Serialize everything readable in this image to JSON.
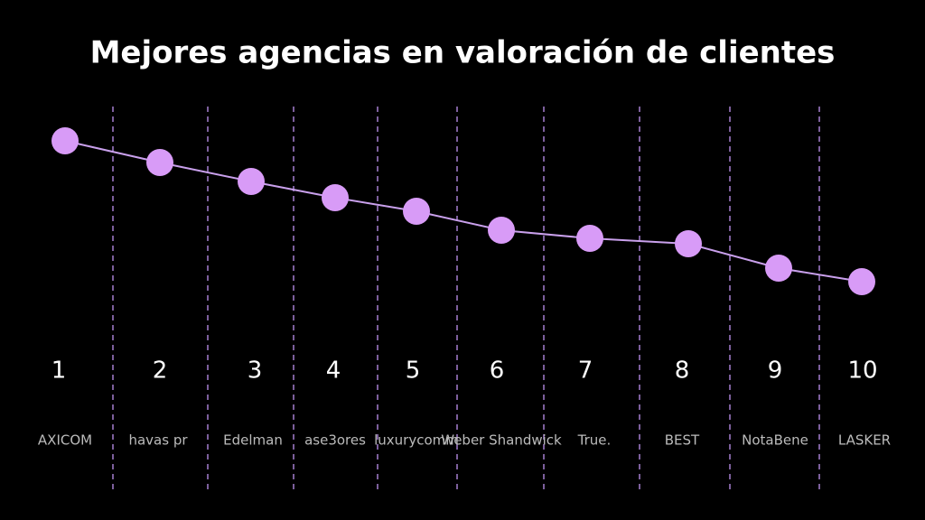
{
  "chart_data": {
    "type": "line",
    "title": "Mejores agencias en valoración de clientes",
    "categories": [
      "1",
      "2",
      "3",
      "4",
      "5",
      "6",
      "7",
      "8",
      "9",
      "10"
    ],
    "logos": [
      "AXICOM",
      "havas pr",
      "Edelman",
      "ase3ores",
      "luxurycomm",
      "Weber Shandwick",
      "True.",
      "BEST",
      "NotaBene",
      "LASKER"
    ],
    "values": [
      88,
      80,
      73,
      67,
      62,
      55,
      52,
      50,
      41,
      36
    ],
    "color": "#d89bf7",
    "line_color": "#c9a0ec",
    "ylim": [
      0,
      100
    ]
  }
}
